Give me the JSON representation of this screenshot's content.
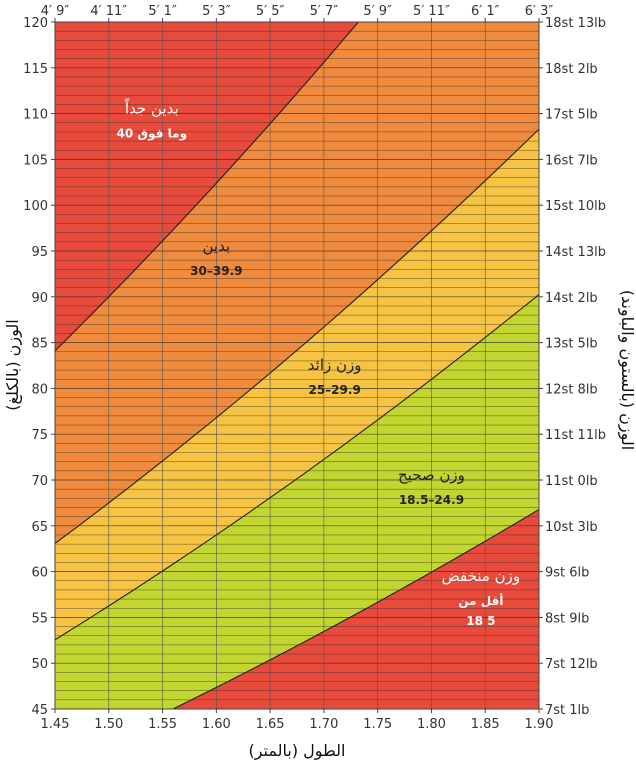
{
  "chart_data": {
    "type": "area",
    "xlabel": "الطول (بالمتر)",
    "ylabel": "الوزن (بالكلغ)",
    "y2label": "الوزن (بالستون والباوند)",
    "xlim": [
      1.45,
      1.9
    ],
    "ylim": [
      45,
      120
    ],
    "x_ticks": [
      "1.45",
      "1.50",
      "1.55",
      "1.60",
      "1.65",
      "1.70",
      "1.75",
      "1.80",
      "1.85",
      "1.90"
    ],
    "y_ticks": [
      "45",
      "50",
      "55",
      "60",
      "65",
      "70",
      "75",
      "80",
      "85",
      "90",
      "95",
      "100",
      "105",
      "110",
      "115",
      "120"
    ],
    "top_ticks": [
      "4′ 9″",
      "4′ 11″",
      "5′ 1″",
      "5′ 3″",
      "5′ 5″",
      "5′ 7″",
      "5′ 9″",
      "5′ 11″",
      "6′ 1″",
      "6′ 3″"
    ],
    "right_ticks": [
      "7st 1lb",
      "7st 12lb",
      "8st 9lb",
      "9st 6lb",
      "10st 3lb",
      "11st 0lb",
      "11st 11lb",
      "12st 8lb",
      "13st 5lb",
      "14st 2lb",
      "14st 13lb",
      "15st 10lb",
      "16st 7lb",
      "17st 5lb",
      "18st 2lb",
      "18st 13lb"
    ],
    "boundaries_bmi": [
      18.5,
      25,
      30,
      40
    ],
    "zones": [
      {
        "name": "وزن منخفض",
        "range": "أقل من",
        "range2": "18 5",
        "bmi_min": 0,
        "bmi_max": 18.5,
        "color": "#e84a3b",
        "text_color": "#ffffff",
        "label_x": 1.846,
        "label_y": 59
      },
      {
        "name": "وزن صحيح",
        "range": "18.5–24.9",
        "bmi_min": 18.5,
        "bmi_max": 25,
        "color": "#c2d62f",
        "text_color": "#222222",
        "label_x": 1.8,
        "label_y": 70
      },
      {
        "name": "وزن زائد",
        "range": "25–29.9",
        "bmi_min": 25,
        "bmi_max": 30,
        "color": "#f6c343",
        "text_color": "#222222",
        "label_x": 1.71,
        "label_y": 82
      },
      {
        "name": "بدين",
        "range": "30–39.9",
        "bmi_min": 30,
        "bmi_max": 40,
        "color": "#f08a3c",
        "text_color": "#222222",
        "label_x": 1.6,
        "label_y": 95
      },
      {
        "name": "بدين جداً",
        "range": "40 وما فوق",
        "bmi_min": 40,
        "bmi_max": 1000,
        "color": "#e84a3b",
        "text_color": "#ffffff",
        "label_x": 1.54,
        "label_y": 110
      }
    ],
    "grid": true,
    "colors": {
      "grid_h": "#2a2a2a",
      "grid_v": "#555555",
      "boundary": "#222222",
      "frame": "#444444"
    }
  }
}
